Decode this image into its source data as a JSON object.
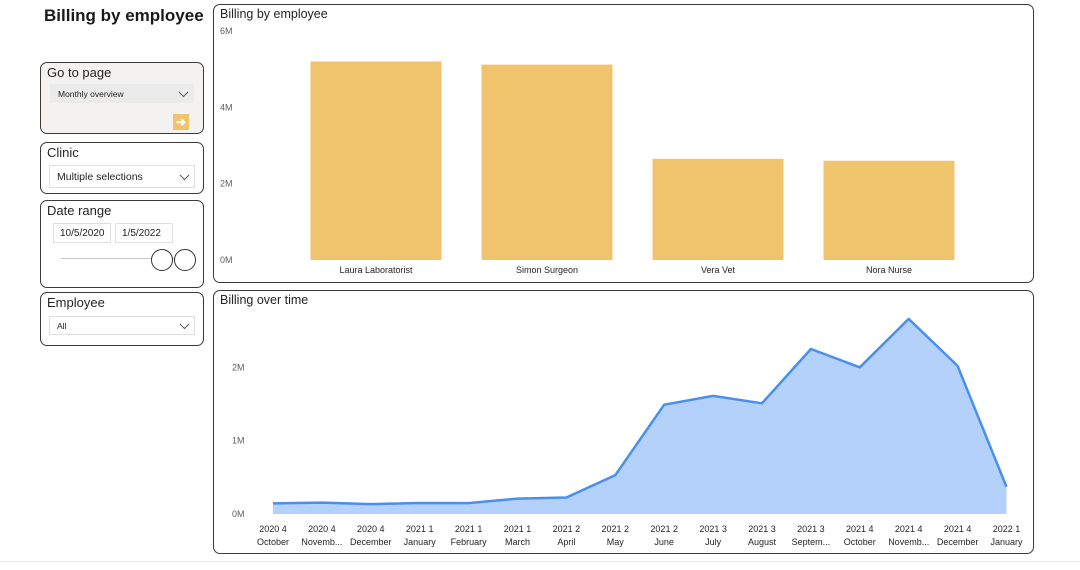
{
  "page": {
    "title": "Billing by employee"
  },
  "slicers": {
    "go_to_page": {
      "title": "Go to page",
      "selected": "Monthly overview",
      "button_glyph": "➔"
    },
    "clinic": {
      "title": "Clinic",
      "selected": "Multiple selections"
    },
    "date_range": {
      "title": "Date range",
      "start": "10/5/2020",
      "end": "1/5/2022"
    },
    "employee": {
      "title": "Employee",
      "selected": "All"
    }
  },
  "colors": {
    "bar": "#f0c36d",
    "line": "#4a8ff0",
    "area": "#b3d1fa",
    "accent": "#f0c36d"
  },
  "chart_data": [
    {
      "type": "bar",
      "title": "Billing by employee",
      "categories": [
        "Laura Laboratorist",
        "Simon Surgeon",
        "Vera Vet",
        "Nora Nurse"
      ],
      "values": [
        5200000,
        5120000,
        2650000,
        2600000
      ],
      "ylim": [
        0,
        6000000
      ],
      "yticks": [
        {
          "value": 0,
          "label": "0M"
        },
        {
          "value": 2000000,
          "label": "2M"
        },
        {
          "value": 4000000,
          "label": "4M"
        },
        {
          "value": 6000000,
          "label": "6M"
        }
      ],
      "xlabel": "",
      "ylabel": "",
      "grid": false
    },
    {
      "type": "area",
      "title": "Billing over time",
      "x": [
        [
          "2020 4",
          "October"
        ],
        [
          "2020 4",
          "Novemb..."
        ],
        [
          "2020 4",
          "December"
        ],
        [
          "2021 1",
          "January"
        ],
        [
          "2021 1",
          "February"
        ],
        [
          "2021 1",
          "March"
        ],
        [
          "2021 2",
          "April"
        ],
        [
          "2021 2",
          "May"
        ],
        [
          "2021 2",
          "June"
        ],
        [
          "2021 3",
          "July"
        ],
        [
          "2021 3",
          "August"
        ],
        [
          "2021 3",
          "Septem..."
        ],
        [
          "2021 4",
          "October"
        ],
        [
          "2021 4",
          "Novemb..."
        ],
        [
          "2021 4",
          "December"
        ],
        [
          "2022 1",
          "January"
        ]
      ],
      "values": [
        145000,
        155000,
        135000,
        150000,
        148000,
        210000,
        225000,
        530000,
        1490000,
        1610000,
        1510000,
        2250000,
        2000000,
        2660000,
        2020000,
        370000
      ],
      "ylim": [
        0,
        2700000
      ],
      "yticks": [
        {
          "value": 0,
          "label": "0M"
        },
        {
          "value": 1000000,
          "label": "1M"
        },
        {
          "value": 2000000,
          "label": "2M"
        }
      ],
      "xlabel": "",
      "ylabel": "",
      "grid": false
    }
  ]
}
